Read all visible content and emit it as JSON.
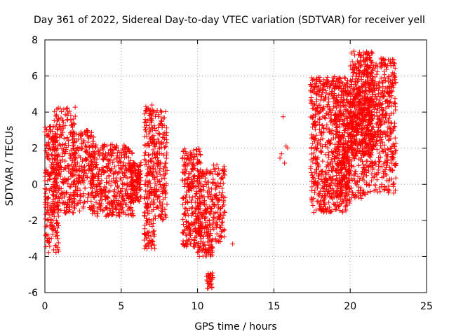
{
  "chart_data": {
    "type": "scatter",
    "title": "Day 361 of 2022, Sidereal Day-to-day VTEC variation (SDTVAR) for receiver yell",
    "xlabel": "GPS time / hours",
    "ylabel": "SDTVAR / TECUs",
    "xlim": [
      0,
      25
    ],
    "ylim": [
      -6,
      8
    ],
    "xticks": [
      "0",
      "5",
      "10",
      "15",
      "20",
      "25"
    ],
    "yticks": [
      "-6",
      "-4",
      "-2",
      "0",
      "2",
      "4",
      "6",
      "8"
    ],
    "grid": true,
    "marker": "+",
    "color": "#ff0000",
    "series": [
      {
        "name": "SDTVAR",
        "clusters": [
          {
            "x": [
              0.0,
              0.9
            ],
            "y": [
              -3.8,
              3.3
            ],
            "n": 220
          },
          {
            "x": [
              0.5,
              2.0
            ],
            "y": [
              -1.6,
              4.3
            ],
            "n": 260
          },
          {
            "x": [
              1.8,
              3.2
            ],
            "y": [
              -1.5,
              3.0
            ],
            "n": 200
          },
          {
            "x": [
              3.0,
              5.8
            ],
            "y": [
              -1.8,
              2.2
            ],
            "n": 420
          },
          {
            "x": [
              5.6,
              6.3
            ],
            "y": [
              -1.0,
              1.2
            ],
            "n": 120
          },
          {
            "x": [
              6.5,
              7.2
            ],
            "y": [
              -3.6,
              4.4
            ],
            "n": 220
          },
          {
            "x": [
              7.2,
              8.0
            ],
            "y": [
              -2.0,
              4.1
            ],
            "n": 160
          },
          {
            "x": [
              9.0,
              10.2
            ],
            "y": [
              -3.5,
              2.0
            ],
            "n": 260
          },
          {
            "x": [
              10.0,
              11.0
            ],
            "y": [
              -4.0,
              0.8
            ],
            "n": 200
          },
          {
            "x": [
              10.6,
              11.0
            ],
            "y": [
              -5.8,
              -4.9
            ],
            "n": 30
          },
          {
            "x": [
              11.0,
              11.8
            ],
            "y": [
              -3.2,
              1.1
            ],
            "n": 120
          },
          {
            "x": [
              12.2,
              12.4
            ],
            "y": [
              -3.3,
              -3.3
            ],
            "n": 1
          },
          {
            "x": [
              15.4,
              15.9
            ],
            "y": [
              0.5,
              3.9
            ],
            "n": 6
          },
          {
            "x": [
              17.4,
              20.0
            ],
            "y": [
              -1.6,
              6.0
            ],
            "n": 700
          },
          {
            "x": [
              19.0,
              21.0
            ],
            "y": [
              -0.8,
              5.5
            ],
            "n": 350
          },
          {
            "x": [
              20.0,
              21.5
            ],
            "y": [
              1.5,
              7.4
            ],
            "n": 400
          },
          {
            "x": [
              21.0,
              23.0
            ],
            "y": [
              -0.5,
              7.0
            ],
            "n": 500
          }
        ]
      }
    ]
  }
}
